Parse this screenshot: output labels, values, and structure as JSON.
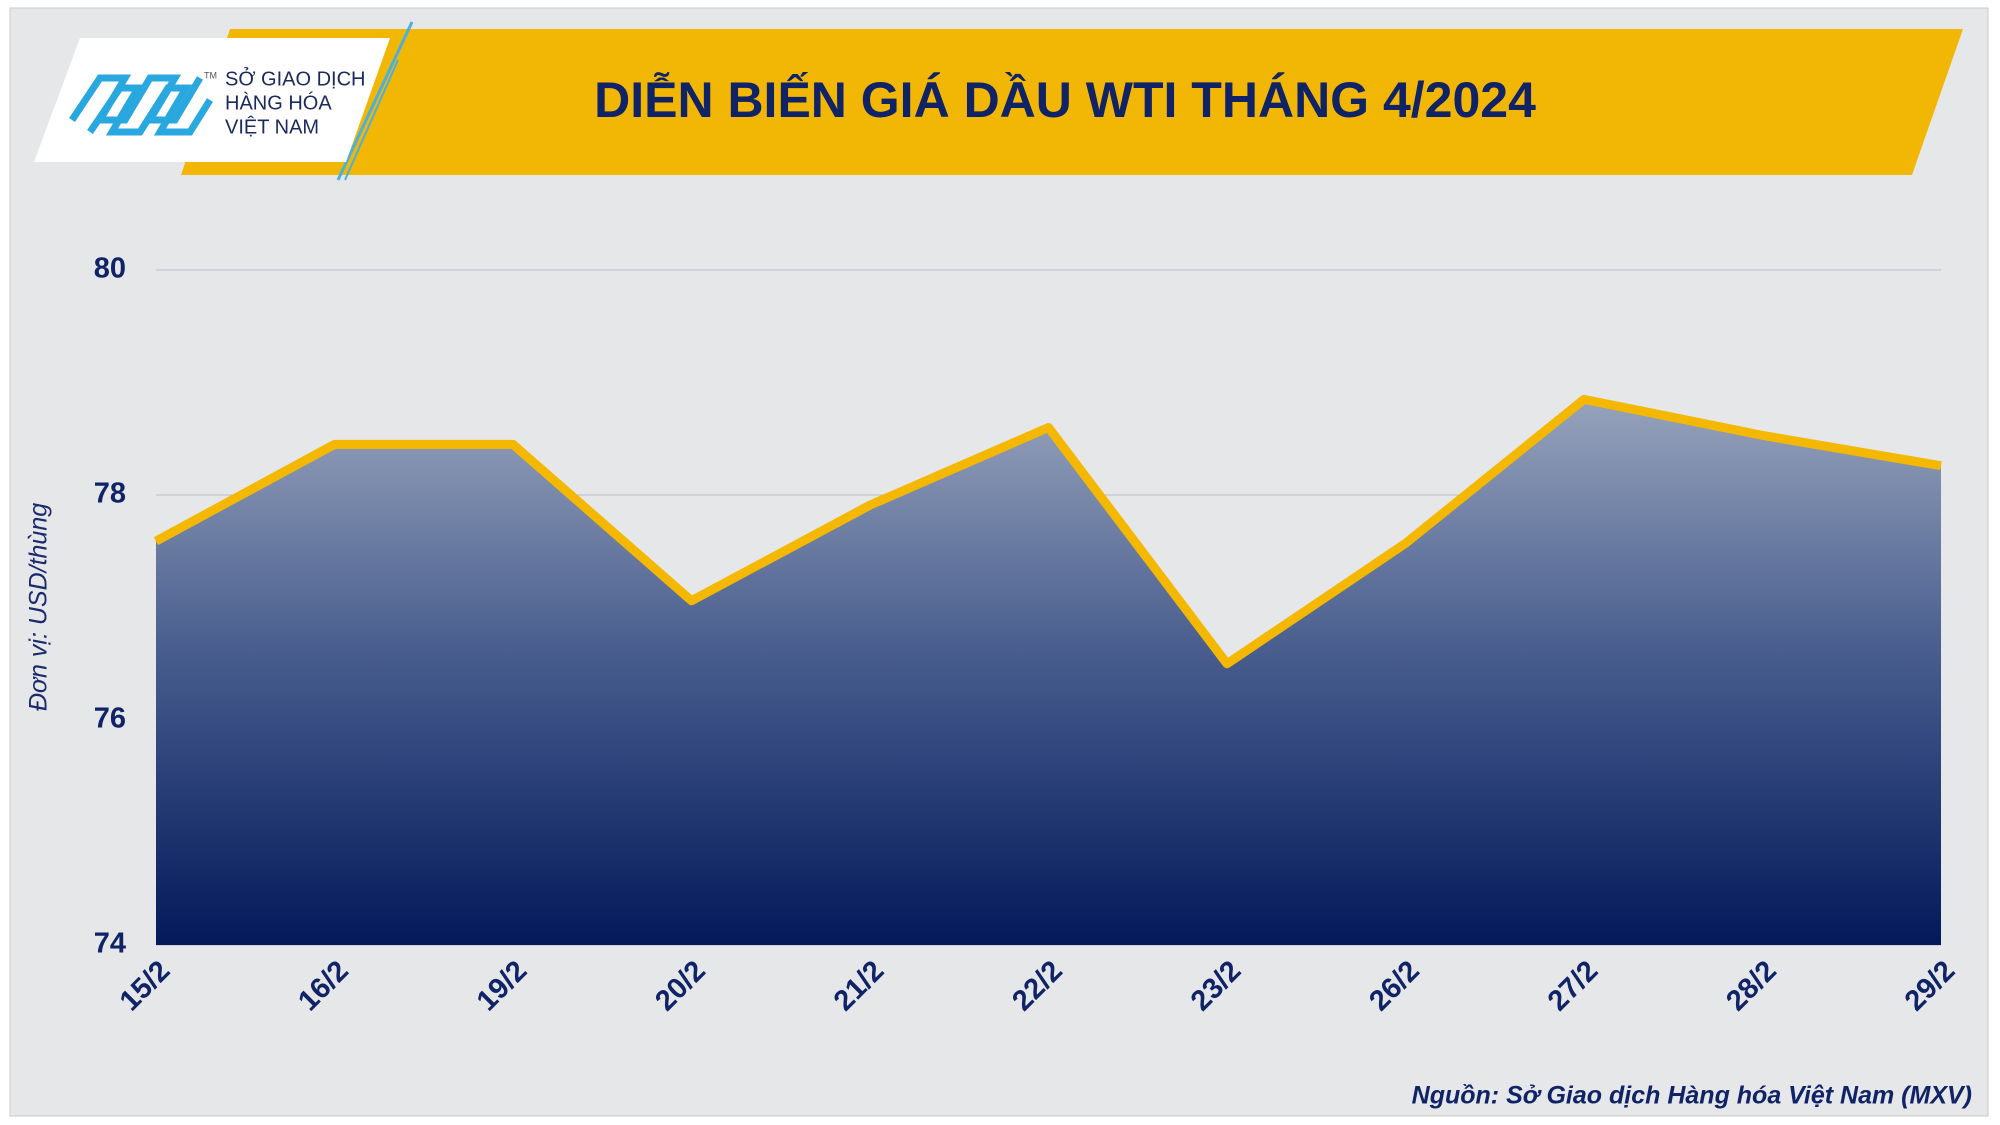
{
  "logo": {
    "tm": "TM",
    "lines": [
      "SỞ GIAO DỊCH",
      "HÀNG HÓA",
      "VIỆT NAM"
    ]
  },
  "chart_data": {
    "type": "area",
    "title": "DIỄN BIẾN GIÁ DẦU WTI THÁNG 4/2024",
    "y_label": "Đơn vị: USD/thùng",
    "source": "Nguồn: Sở Giao dịch Hàng hóa Việt Nam (MXV)",
    "categories": [
      "15/2",
      "16/2",
      "19/2",
      "20/2",
      "21/2",
      "22/2",
      "23/2",
      "26/2",
      "27/2",
      "28/2",
      "29/2"
    ],
    "values": [
      77.59,
      78.45,
      78.45,
      77.06,
      77.91,
      78.6,
      76.5,
      77.57,
      78.85,
      78.53,
      78.26
    ],
    "color": "#f5b800",
    "ylim": [
      74,
      80
    ],
    "yticks": [
      74,
      76,
      78,
      80
    ],
    "grid": true
  }
}
